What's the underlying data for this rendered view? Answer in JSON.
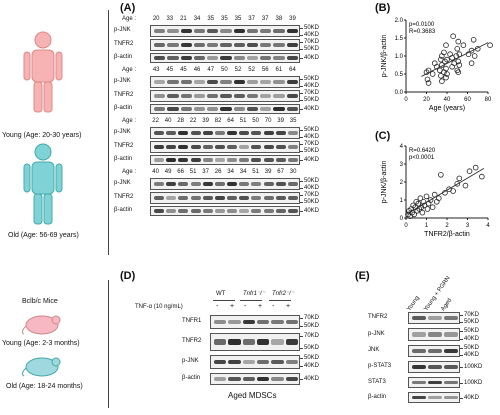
{
  "figure": {
    "panel_labels": {
      "a": "(A)",
      "b": "(B)",
      "c": "(C)",
      "d": "(D)",
      "e": "(E)"
    },
    "human": {
      "young": "Young (Age: 20-30 years)",
      "old": "Old (Age: 56-69 years)"
    },
    "mice": {
      "strain": "Bclb/c Mice",
      "young": "Young (Age: 2-3 months)",
      "old": "Old (Age: 18-24 months)"
    }
  },
  "panel_a": {
    "age_label": "Age",
    "blocks": [
      {
        "ages": [
          "20",
          "33",
          "21",
          "34",
          "35",
          "35",
          "35",
          "37",
          "37",
          "38",
          "39"
        ],
        "rows": [
          {
            "label": "p-JNK",
            "mw": [
              "50KD",
              "40KD"
            ]
          },
          {
            "label": "TNFR2",
            "mw": [
              "70KD",
              "50KD"
            ]
          },
          {
            "label": "β-actin",
            "mw": [
              "40KD"
            ]
          }
        ]
      },
      {
        "ages": [
          "43",
          "45",
          "45",
          "46",
          "47",
          "50",
          "52",
          "52",
          "56",
          "61",
          "64"
        ],
        "rows": [
          {
            "label": "p-JNK",
            "mw": [
              "50KD",
              "40KD"
            ]
          },
          {
            "label": "TNFR2",
            "mw": [
              "70KD",
              "50KD"
            ]
          },
          {
            "label": "β-actin",
            "mw": [
              "40KD"
            ]
          }
        ]
      },
      {
        "ages": [
          "22",
          "40",
          "28",
          "22",
          "39",
          "82",
          "64",
          "51",
          "50",
          "70",
          "39",
          "35"
        ],
        "rows": [
          {
            "label": "p-JNK",
            "mw": [
              "50KD",
              "40KD"
            ]
          },
          {
            "label": "TNFR2",
            "mw": [
              "70KD",
              "50KD"
            ]
          },
          {
            "label": "β-actin",
            "mw": [
              "40KD"
            ]
          }
        ]
      },
      {
        "ages": [
          "40",
          "49",
          "66",
          "51",
          "37",
          "26",
          "34",
          "34",
          "51",
          "39",
          "67",
          "30"
        ],
        "rows": [
          {
            "label": "p-JNK",
            "mw": [
              "50KD",
              "40KD"
            ]
          },
          {
            "label": "TNFR2",
            "mw": [
              "70KD",
              "50KD"
            ]
          },
          {
            "label": "β-actin",
            "mw": [
              "40KD"
            ]
          }
        ]
      }
    ]
  },
  "panel_d": {
    "treatment_label": "TNF-α (10 ng/mL)",
    "groups": [
      "WT",
      "Tnfr1⁻/⁻",
      "Tnfr2⁻/⁻"
    ],
    "signs": [
      "-",
      "+",
      "-",
      "+",
      "-",
      "+"
    ],
    "rows": [
      {
        "label": "TNFR1",
        "mw": [
          "70KD",
          "50KD"
        ]
      },
      {
        "label": "TNFR2",
        "mw": [
          "70KD",
          "50KD"
        ]
      },
      {
        "label": "p-JNK",
        "mw": [
          "50KD",
          "40KD"
        ]
      },
      {
        "label": "β-actin",
        "mw": [
          "40KD"
        ]
      }
    ],
    "footer": "Aged  MDSCs"
  },
  "panel_e": {
    "columns": [
      "Young",
      "Young + PGRN",
      "Aged"
    ],
    "rows": [
      {
        "label": "TNFR2",
        "mw": [
          "70KD",
          "50KD"
        ]
      },
      {
        "label": "p-JNK",
        "mw": [
          "50KD",
          "40KD"
        ]
      },
      {
        "label": "JNK",
        "mw": [
          "50KD",
          "40KD"
        ]
      },
      {
        "label": "p-STAT3",
        "mw": [
          "100KD"
        ]
      },
      {
        "label": "STAT3",
        "mw": [
          "100KD"
        ]
      },
      {
        "label": "β-actin",
        "mw": [
          "40KD"
        ]
      }
    ]
  },
  "chart_data": [
    {
      "type": "scatter",
      "xlabel": "Age (years)",
      "ylabel": "p-JNK/β-actin",
      "xlim": [
        0,
        80
      ],
      "ylim": [
        0,
        2.0
      ],
      "xticks": [
        "0",
        "20",
        "40",
        "60",
        "80"
      ],
      "yticks": [
        "0.0",
        "0.5",
        "1.0",
        "1.5",
        "2.0"
      ],
      "annotations": [
        "p=0.0100",
        "R=0.3683"
      ],
      "points": [
        [
          20,
          0.55
        ],
        [
          21,
          0.35
        ],
        [
          22,
          0.6
        ],
        [
          22,
          0.25
        ],
        [
          26,
          0.5
        ],
        [
          28,
          0.8
        ],
        [
          30,
          0.7
        ],
        [
          33,
          0.6
        ],
        [
          34,
          0.9
        ],
        [
          34,
          0.45
        ],
        [
          35,
          1.0
        ],
        [
          35,
          0.3
        ],
        [
          35,
          0.75
        ],
        [
          37,
          1.1
        ],
        [
          37,
          0.55
        ],
        [
          38,
          0.85
        ],
        [
          39,
          1.3
        ],
        [
          39,
          0.65
        ],
        [
          39,
          0.4
        ],
        [
          40,
          0.9
        ],
        [
          40,
          0.5
        ],
        [
          43,
          1.05
        ],
        [
          45,
          0.95
        ],
        [
          45,
          0.7
        ],
        [
          46,
          1.55
        ],
        [
          47,
          0.8
        ],
        [
          49,
          1.0
        ],
        [
          50,
          1.2
        ],
        [
          50,
          0.6
        ],
        [
          51,
          0.85
        ],
        [
          51,
          1.4
        ],
        [
          51,
          0.55
        ],
        [
          52,
          1.05
        ],
        [
          52,
          0.75
        ],
        [
          56,
          1.3
        ],
        [
          61,
          1.05
        ],
        [
          64,
          1.15
        ],
        [
          64,
          0.8
        ],
        [
          66,
          1.45
        ],
        [
          67,
          1.0
        ],
        [
          70,
          1.2
        ],
        [
          82,
          1.3
        ]
      ]
    },
    {
      "type": "scatter",
      "xlabel": "TNFR2/β-actin",
      "ylabel": "p-JNK/β-actin",
      "xlim": [
        0,
        4
      ],
      "ylim": [
        0,
        4
      ],
      "xticks": [
        "0",
        "1",
        "2",
        "3",
        "4"
      ],
      "yticks": [
        "0",
        "1",
        "2",
        "3",
        "4"
      ],
      "annotations": [
        "R=0.6420",
        "p<0.0001"
      ],
      "points": [
        [
          0.1,
          0.2
        ],
        [
          0.15,
          0.4
        ],
        [
          0.2,
          0.1
        ],
        [
          0.25,
          0.5
        ],
        [
          0.3,
          0.3
        ],
        [
          0.35,
          0.7
        ],
        [
          0.4,
          0.2
        ],
        [
          0.45,
          0.6
        ],
        [
          0.5,
          0.9
        ],
        [
          0.55,
          0.4
        ],
        [
          0.6,
          0.8
        ],
        [
          0.65,
          0.5
        ],
        [
          0.7,
          1.1
        ],
        [
          0.75,
          0.6
        ],
        [
          0.8,
          0.3
        ],
        [
          0.85,
          0.9
        ],
        [
          0.9,
          0.7
        ],
        [
          1.0,
          1.2
        ],
        [
          1.05,
          0.5
        ],
        [
          1.1,
          0.8
        ],
        [
          1.2,
          1.0
        ],
        [
          1.3,
          0.6
        ],
        [
          1.4,
          1.3
        ],
        [
          1.5,
          0.9
        ],
        [
          1.6,
          1.1
        ],
        [
          1.7,
          2.4
        ],
        [
          1.9,
          1.4
        ],
        [
          2.1,
          1.6
        ],
        [
          2.3,
          1.5
        ],
        [
          2.5,
          1.9
        ],
        [
          2.6,
          2.2
        ],
        [
          2.9,
          1.8
        ],
        [
          3.1,
          2.6
        ],
        [
          3.4,
          2.8
        ],
        [
          3.7,
          2.3
        ]
      ]
    }
  ]
}
